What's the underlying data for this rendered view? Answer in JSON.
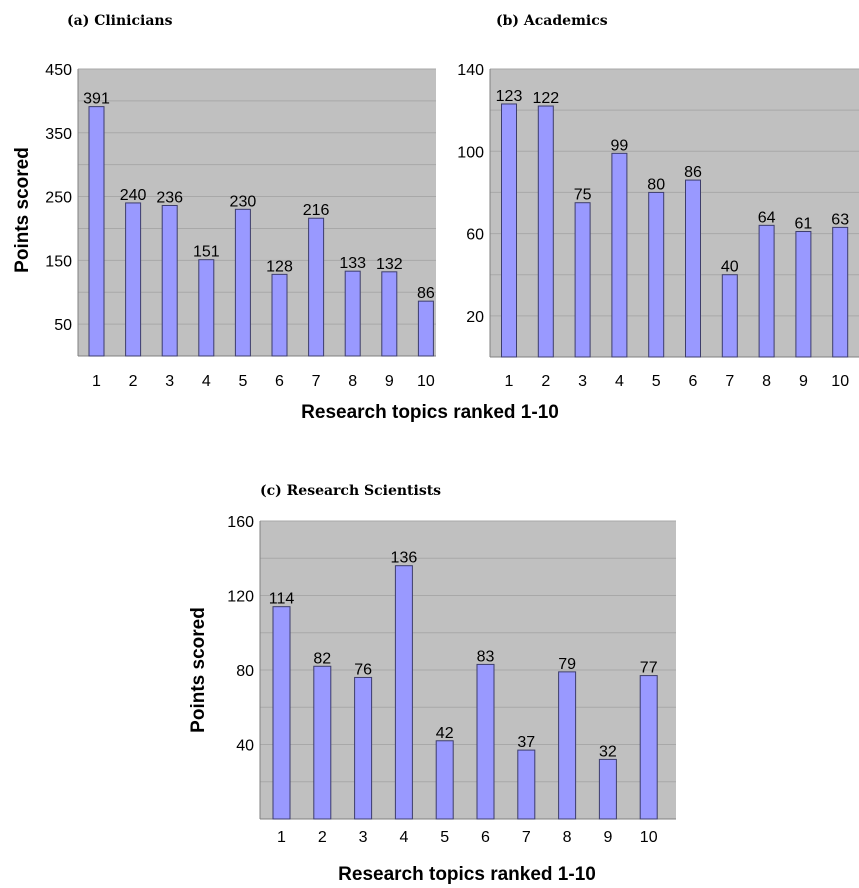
{
  "shared": {
    "xlabel": "Research topics ranked 1-10",
    "ylabel": "Points scored"
  },
  "colors": {
    "plot_background": "#c0c0c0",
    "bar_fill": "#9999ff",
    "bar_stroke": "#3d3d6b",
    "grid": "#a8a8a8"
  },
  "chart_data": [
    {
      "type": "bar",
      "title": "(a) Clinicians",
      "categories": [
        "1",
        "2",
        "3",
        "4",
        "5",
        "6",
        "7",
        "8",
        "9",
        "10"
      ],
      "values": [
        391,
        240,
        236,
        151,
        230,
        128,
        216,
        133,
        132,
        86
      ],
      "ylabel": "Points scored",
      "xlabel": "Research topics ranked 1-10",
      "ylim": [
        0,
        450
      ],
      "yticks": [
        "450",
        "350",
        "250",
        "150",
        "50"
      ],
      "ytick_values": [
        450,
        350,
        250,
        150,
        50
      ],
      "grid": true,
      "legend": "none"
    },
    {
      "type": "bar",
      "title": "(b) Academics",
      "categories": [
        "1",
        "2",
        "3",
        "4",
        "5",
        "6",
        "7",
        "8",
        "9",
        "10"
      ],
      "values": [
        123,
        122,
        75,
        99,
        80,
        86,
        40,
        64,
        61,
        63
      ],
      "ylabel": "",
      "xlabel": "Research topics ranked 1-10",
      "ylim": [
        0,
        140
      ],
      "yticks": [
        "140",
        "100",
        "60",
        "20"
      ],
      "ytick_values": [
        140,
        100,
        60,
        20
      ],
      "grid": true,
      "legend": "none"
    },
    {
      "type": "bar",
      "title": "(c) Research Scientists",
      "categories": [
        "1",
        "2",
        "3",
        "4",
        "5",
        "6",
        "7",
        "8",
        "9",
        "10"
      ],
      "values": [
        114,
        82,
        76,
        136,
        42,
        83,
        37,
        79,
        32,
        77
      ],
      "ylabel": "Points scored",
      "xlabel": "Research topics ranked 1-10",
      "ylim": [
        0,
        160
      ],
      "yticks": [
        "160",
        "120",
        "80",
        "40"
      ],
      "ytick_values": [
        160,
        120,
        80,
        40
      ],
      "grid": true,
      "legend": "none"
    }
  ]
}
